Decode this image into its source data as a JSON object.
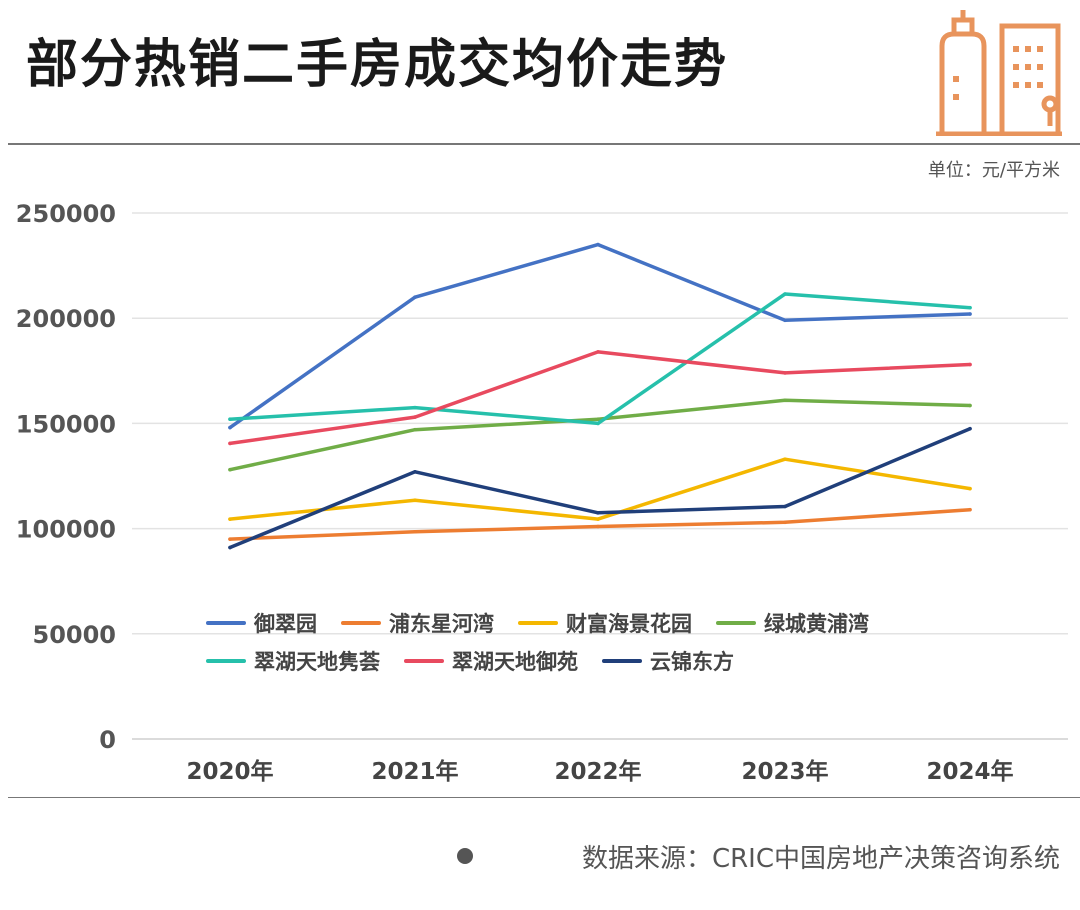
{
  "header": {
    "title": "部分热销二手房成交均价走势",
    "unit": "单位：元/平方米"
  },
  "footer": {
    "source": "数据来源：CRIC中国房地产决策咨询系统"
  },
  "logo": {
    "icon": "buildings-icon",
    "color": "#e8945c"
  },
  "chart_data": {
    "type": "line",
    "title": "部分热销二手房成交均价走势",
    "xlabel": "",
    "ylabel": "",
    "categories": [
      "2020年",
      "2021年",
      "2022年",
      "2023年",
      "2024年"
    ],
    "ylim": [
      0,
      250000
    ],
    "yticks": [
      "250000",
      "200000",
      "150000",
      "100000",
      "50000",
      "0"
    ],
    "grid": true,
    "legend_position": "center",
    "series": [
      {
        "name": "御翠园",
        "color": "#4472c4",
        "values": [
          148000,
          210000,
          235000,
          199000,
          202000
        ]
      },
      {
        "name": "浦东星河湾",
        "color": "#ed7d31",
        "values": [
          95000,
          98500,
          101000,
          103000,
          109000
        ]
      },
      {
        "name": "财富海景花园",
        "color": "#f4b700",
        "values": [
          104500,
          113500,
          104500,
          133000,
          119000
        ]
      },
      {
        "name": "绿城黄浦湾",
        "color": "#70ad47",
        "values": [
          128000,
          147000,
          152000,
          161000,
          158500
        ]
      },
      {
        "name": "翠湖天地隽荟",
        "color": "#26c0ab",
        "values": [
          152000,
          157500,
          150000,
          211500,
          205000
        ]
      },
      {
        "name": "翠湖天地御苑",
        "color": "#e84a5f",
        "values": [
          140500,
          153000,
          184000,
          174000,
          178000
        ]
      },
      {
        "name": "云锦东方",
        "color": "#203f7a",
        "values": [
          91000,
          127000,
          107500,
          110500,
          147500
        ]
      }
    ]
  }
}
